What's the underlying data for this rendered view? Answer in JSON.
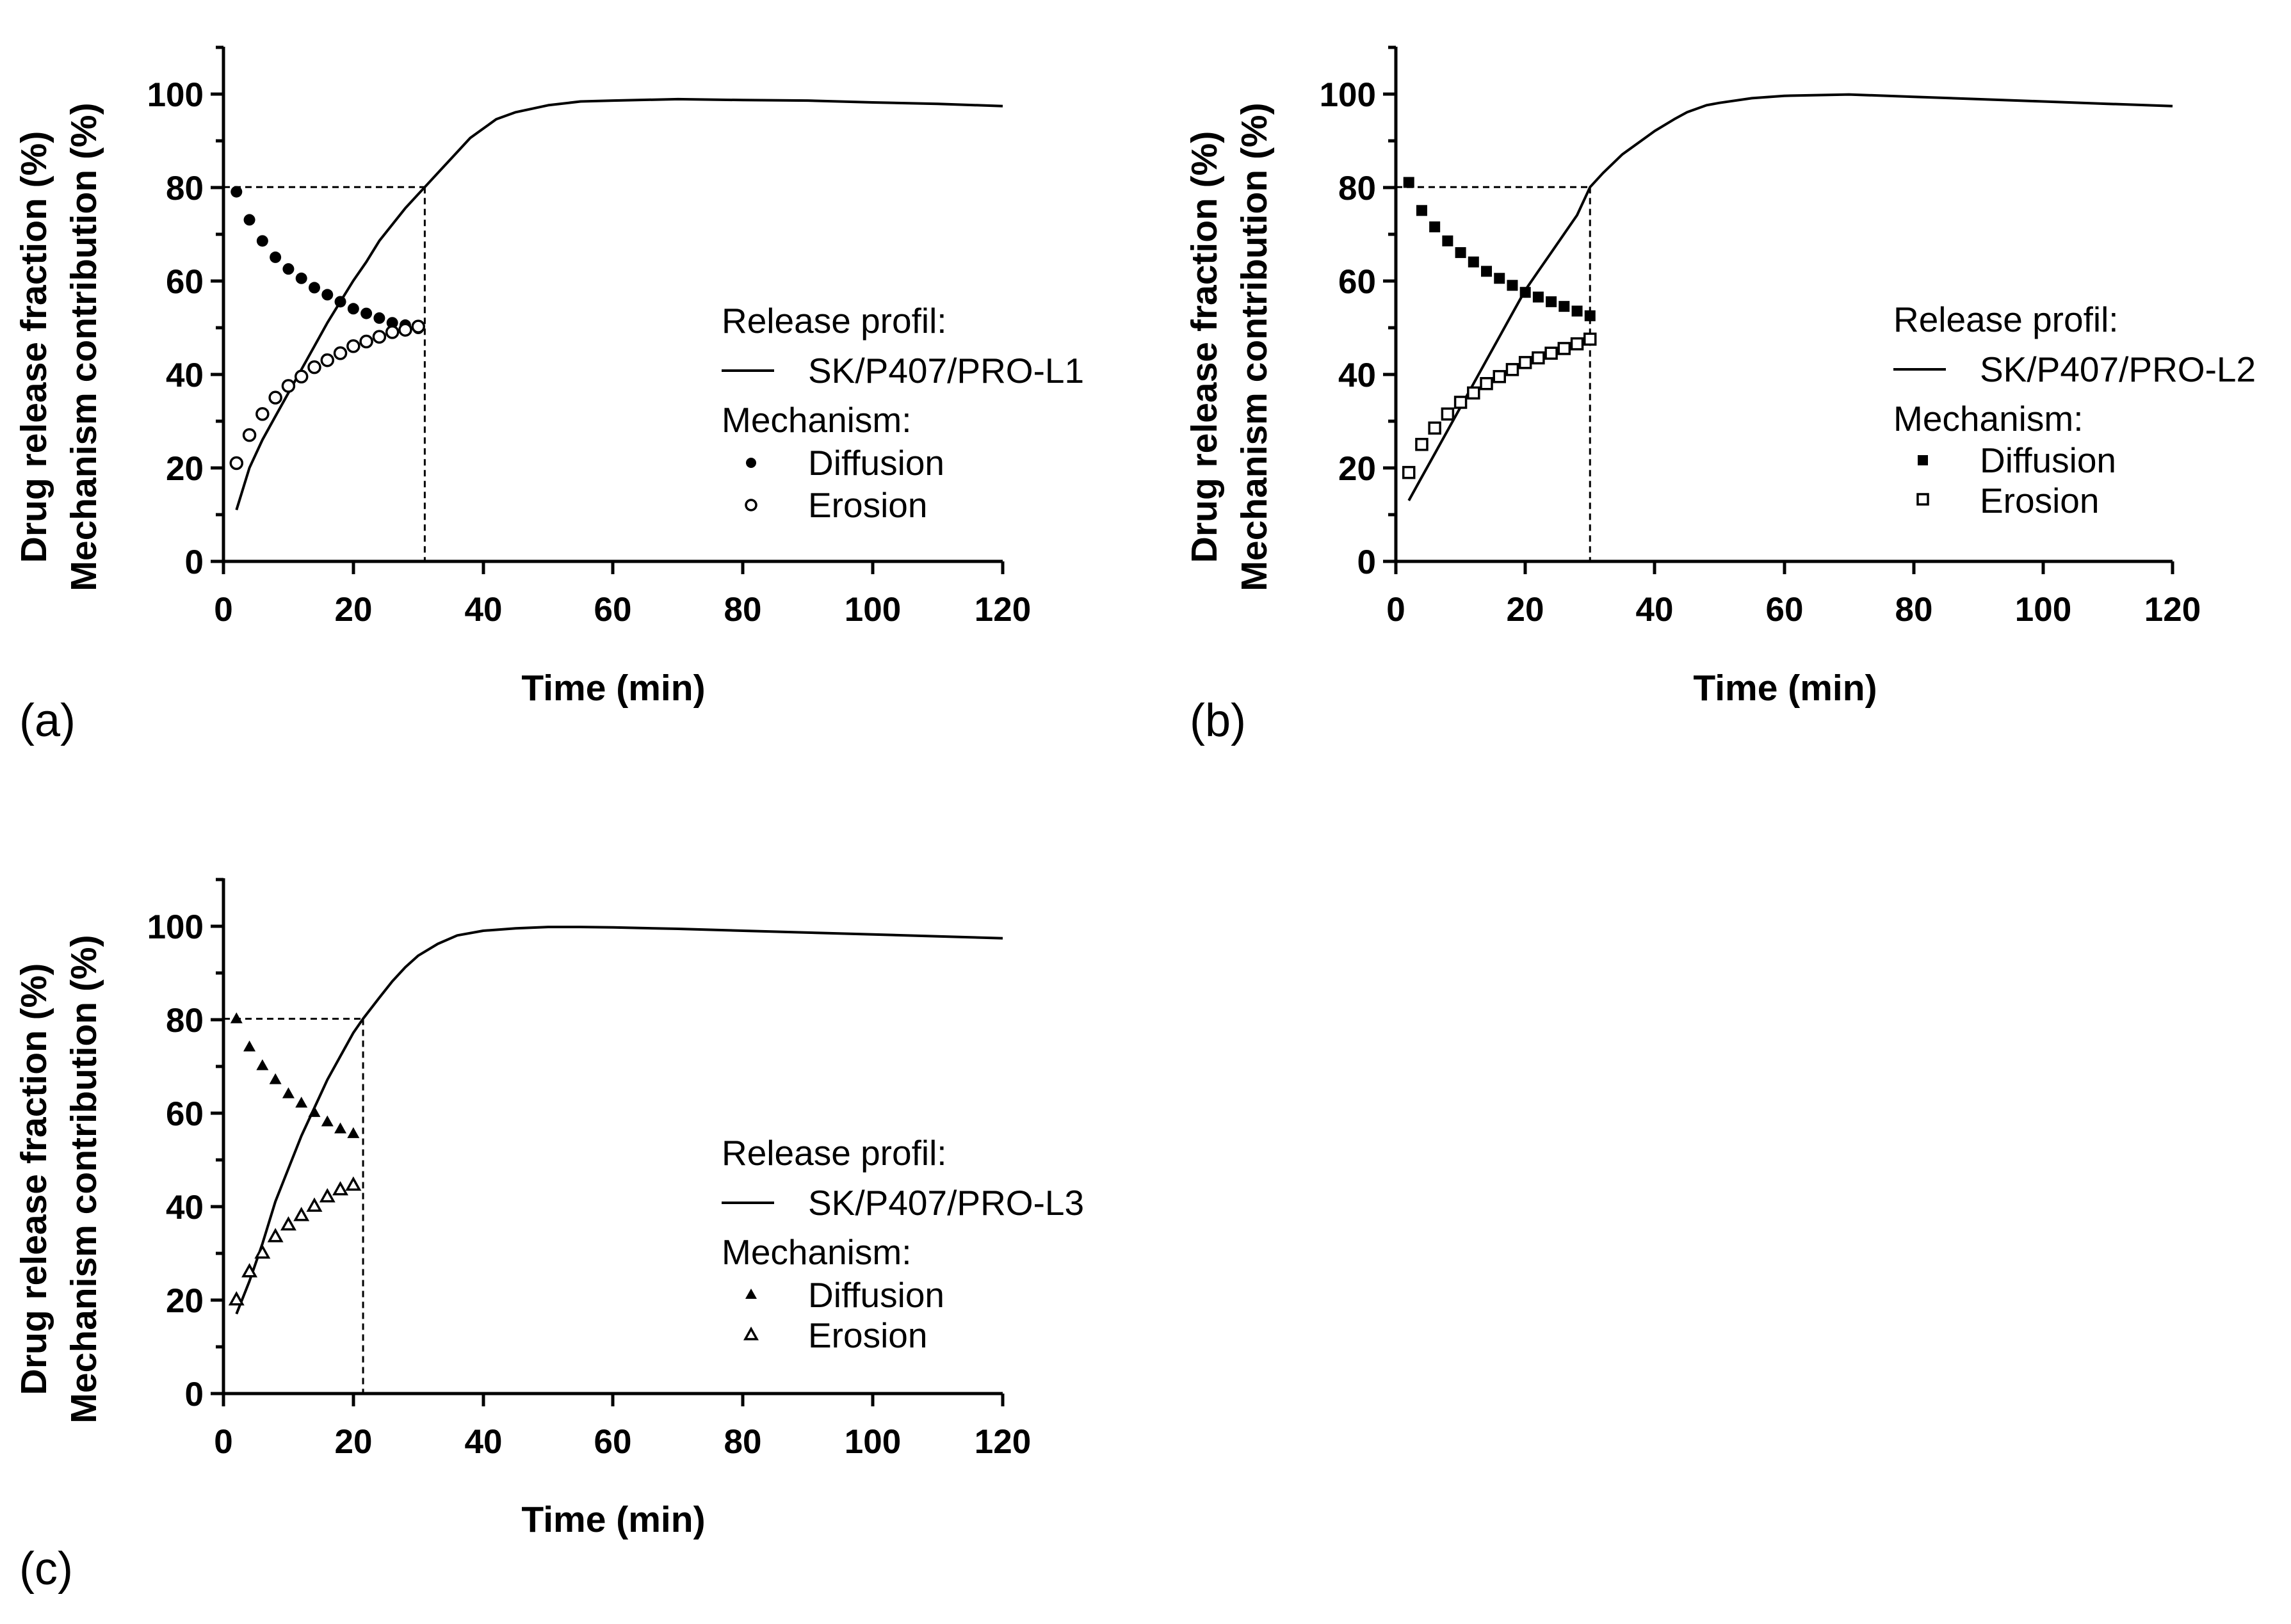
{
  "figure": {
    "ylabel_line1": "Drug release fraction (%)",
    "ylabel_line2": "Mechanism contribution (%)",
    "xlabel": "Time (min)",
    "legend_release_title": "Release profil:",
    "legend_mechanism_title": "Mechanism:",
    "legend_diffusion": "Diffusion",
    "legend_erosion": "Erosion"
  },
  "chart_data": [
    {
      "panel": "(a)",
      "type": "line",
      "xlim": [
        0,
        120
      ],
      "ylim": [
        0,
        110
      ],
      "xticks": [
        0,
        20,
        40,
        60,
        80,
        100,
        120
      ],
      "yticks": [
        0,
        20,
        40,
        60,
        80,
        100
      ],
      "xlabel": "Time (min)",
      "ylabel": "Drug release fraction (%) / Mechanism contribution (%)",
      "reference": {
        "x": 31,
        "y": 80
      },
      "release_series": {
        "name": "SK/P407/PRO-L1",
        "x": [
          2,
          4,
          6,
          8,
          10,
          12,
          14,
          16,
          18,
          20,
          22,
          24,
          26,
          28,
          30,
          31,
          34,
          36,
          38,
          40,
          42,
          45,
          50,
          55,
          60,
          70,
          80,
          90,
          100,
          110,
          120
        ],
        "y": [
          11,
          20,
          26,
          31,
          36,
          41,
          46,
          51,
          55.5,
          60,
          64,
          68.5,
          72,
          75.5,
          78.5,
          80,
          84.5,
          87.5,
          90.5,
          92.5,
          94.5,
          96,
          97.5,
          98.3,
          98.5,
          98.8,
          98.6,
          98.5,
          98.1,
          97.8,
          97.3
        ]
      },
      "diffusion": {
        "name": "Diffusion",
        "marker": "filled-circle",
        "x": [
          2,
          4,
          6,
          8,
          10,
          12,
          14,
          16,
          18,
          20,
          22,
          24,
          26,
          28,
          30
        ],
        "y": [
          79,
          73,
          68.5,
          65,
          62.5,
          60.5,
          58.5,
          57,
          55.5,
          54,
          53,
          52,
          51,
          50.5,
          49.8
        ]
      },
      "erosion": {
        "name": "Erosion",
        "marker": "open-circle",
        "x": [
          2,
          4,
          6,
          8,
          10,
          12,
          14,
          16,
          18,
          20,
          22,
          24,
          26,
          28,
          30
        ],
        "y": [
          21,
          27,
          31.5,
          35,
          37.5,
          39.5,
          41.5,
          43,
          44.5,
          46,
          47,
          48,
          49,
          49.5,
          50.2
        ]
      }
    },
    {
      "panel": "(b)",
      "type": "line",
      "xlim": [
        0,
        120
      ],
      "ylim": [
        0,
        110
      ],
      "xticks": [
        0,
        20,
        40,
        60,
        80,
        100,
        120
      ],
      "yticks": [
        0,
        20,
        40,
        60,
        80,
        100
      ],
      "xlabel": "Time (min)",
      "ylabel": "Drug release fraction (%) / Mechanism contribution (%)",
      "reference": {
        "x": 30,
        "y": 80
      },
      "release_series": {
        "name": "SK/P407/PRO-L2",
        "x": [
          2,
          4,
          6,
          8,
          10,
          12,
          14,
          16,
          18,
          20,
          22,
          24,
          26,
          28,
          30,
          32,
          35,
          38,
          40,
          43,
          45,
          48,
          50,
          55,
          60,
          70,
          80,
          90,
          100,
          110,
          120
        ],
        "y": [
          13,
          18,
          23,
          28,
          33,
          38,
          43,
          48,
          53,
          58,
          62,
          66,
          70,
          74,
          80,
          83,
          87,
          90,
          92,
          94.5,
          96,
          97.5,
          98,
          99,
          99.5,
          99.8,
          99.3,
          98.8,
          98.3,
          97.8,
          97.3
        ]
      },
      "diffusion": {
        "name": "Diffusion",
        "marker": "filled-square",
        "x": [
          2,
          4,
          6,
          8,
          10,
          12,
          14,
          16,
          18,
          20,
          22,
          24,
          26,
          28,
          30
        ],
        "y": [
          81,
          75,
          71.5,
          68.5,
          66,
          64,
          62,
          60.5,
          59,
          57.5,
          56.5,
          55.5,
          54.5,
          53.5,
          52.5
        ]
      },
      "erosion": {
        "name": "Erosion",
        "marker": "open-square",
        "x": [
          2,
          4,
          6,
          8,
          10,
          12,
          14,
          16,
          18,
          20,
          22,
          24,
          26,
          28,
          30
        ],
        "y": [
          19,
          25,
          28.5,
          31.5,
          34,
          36,
          38,
          39.5,
          41,
          42.5,
          43.5,
          44.5,
          45.5,
          46.5,
          47.5
        ]
      }
    },
    {
      "panel": "(c)",
      "type": "line",
      "xlim": [
        0,
        120
      ],
      "ylim": [
        0,
        110
      ],
      "xticks": [
        0,
        20,
        40,
        60,
        80,
        100,
        120
      ],
      "yticks": [
        0,
        20,
        40,
        60,
        80,
        100
      ],
      "xlabel": "Time (min)",
      "ylabel": "Drug release fraction (%) / Mechanism contribution (%)",
      "reference": {
        "x": 21.5,
        "y": 80
      },
      "release_series": {
        "name": "SK/P407/PRO-L3",
        "x": [
          2,
          4,
          6,
          8,
          10,
          12,
          14,
          16,
          18,
          20,
          21.5,
          24,
          26,
          28,
          30,
          33,
          36,
          40,
          45,
          50,
          55,
          60,
          70,
          80,
          90,
          100,
          110,
          120
        ],
        "y": [
          17,
          24,
          32,
          41,
          48,
          55,
          61,
          67,
          72,
          77,
          80,
          84.5,
          88,
          91,
          93.5,
          96,
          97.8,
          98.8,
          99.3,
          99.6,
          99.6,
          99.5,
          99.2,
          98.8,
          98.4,
          98.0,
          97.6,
          97.2
        ]
      },
      "diffusion": {
        "name": "Diffusion",
        "marker": "filled-triangle",
        "x": [
          2,
          4,
          6,
          8,
          10,
          12,
          14,
          16,
          18,
          20
        ],
        "y": [
          80,
          74,
          70,
          67,
          64,
          62,
          60,
          58,
          56.5,
          55.5
        ]
      },
      "erosion": {
        "name": "Erosion",
        "marker": "open-triangle",
        "x": [
          2,
          4,
          6,
          8,
          10,
          12,
          14,
          16,
          18,
          20
        ],
        "y": [
          20,
          26,
          30,
          33.5,
          36,
          38,
          40,
          42,
          43.5,
          44.5
        ]
      }
    }
  ]
}
